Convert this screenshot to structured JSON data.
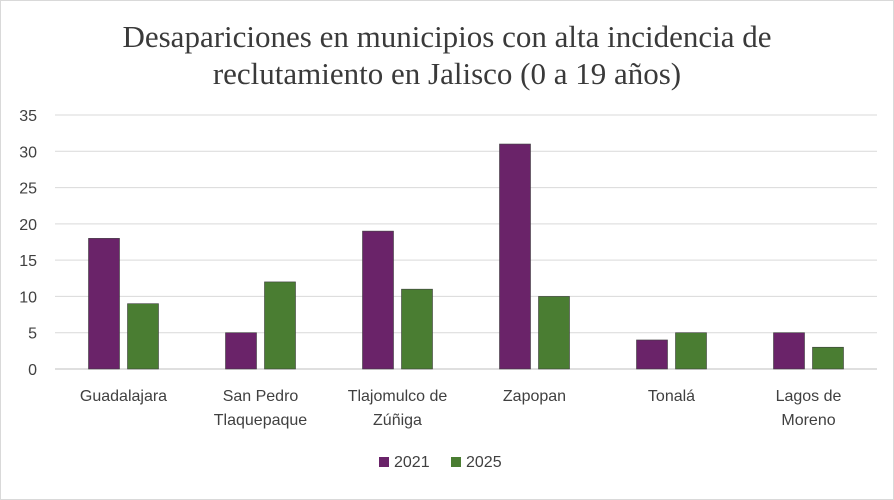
{
  "chart_data": {
    "type": "bar",
    "title_lines": [
      "Desapariciones en municipios con alta incidencia de",
      "reclutamiento en Jalisco (0 a 19 años)"
    ],
    "categories": [
      [
        "Guadalajara"
      ],
      [
        "San Pedro",
        "Tlaquepaque"
      ],
      [
        "Tlajomulco de",
        "Zúñiga"
      ],
      [
        "Zapopan"
      ],
      [
        "Tonalá"
      ],
      [
        "Lagos de",
        "Moreno"
      ]
    ],
    "series": [
      {
        "name": "2021",
        "color": "#6a2369",
        "values": [
          18,
          5,
          19,
          31,
          4,
          5
        ]
      },
      {
        "name": "2025",
        "color": "#4a7d32",
        "values": [
          9,
          12,
          11,
          10,
          5,
          3
        ]
      }
    ],
    "ylim": [
      0,
      35
    ],
    "yticks": [
      0,
      5,
      10,
      15,
      20,
      25,
      30,
      35
    ],
    "grid": true,
    "legend_position": "bottom"
  }
}
